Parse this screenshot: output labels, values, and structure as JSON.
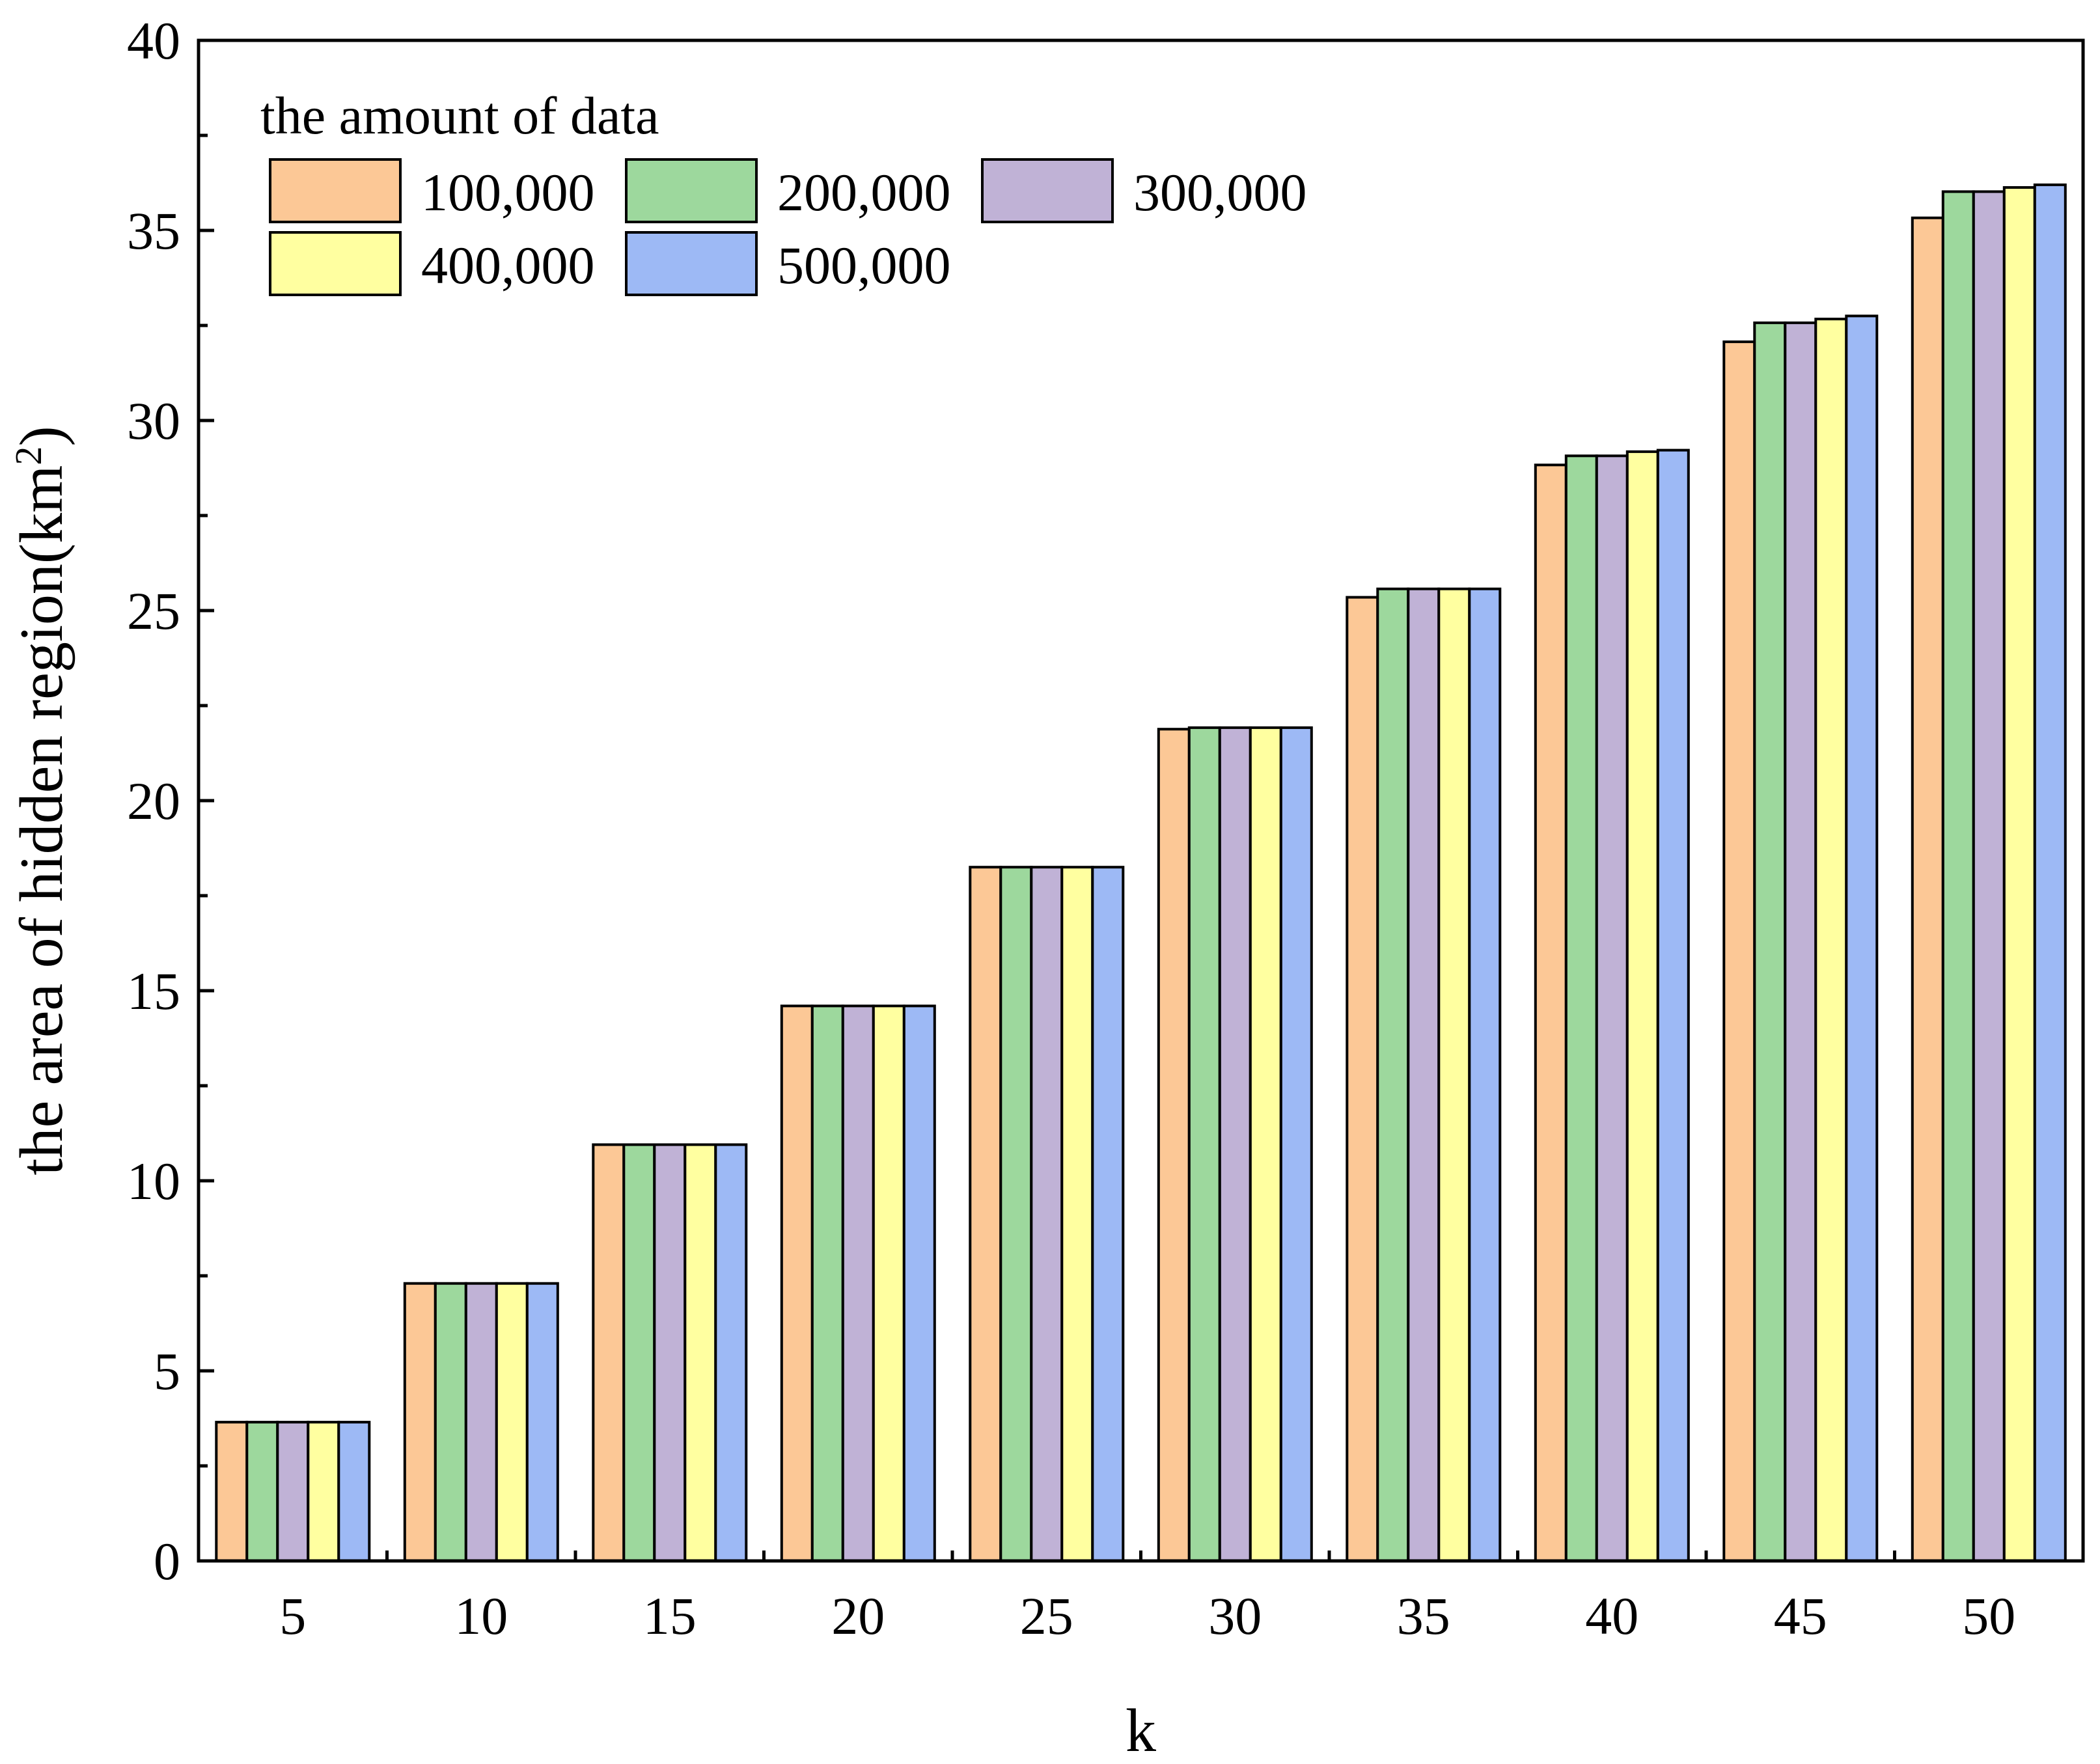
{
  "chart_data": {
    "type": "bar",
    "title": "",
    "xlabel": "k",
    "ylabel": "the area of hidden region(km",
    "ylabel_sup": "2",
    "ylabel_close": ")",
    "ylim": [
      0,
      40
    ],
    "yticks": [
      0,
      5,
      10,
      15,
      20,
      25,
      30,
      35,
      40
    ],
    "categories": [
      "5",
      "10",
      "15",
      "20",
      "25",
      "30",
      "35",
      "40",
      "45",
      "50"
    ],
    "legend_title": "the amount of data",
    "legend_position": "top-left",
    "series": [
      {
        "name": "100,000",
        "color": "#FCC896",
        "values": [
          3.65,
          7.3,
          10.95,
          14.6,
          18.25,
          21.88,
          25.35,
          28.83,
          32.07,
          35.33
        ]
      },
      {
        "name": "200,000",
        "color": "#9DD89D",
        "values": [
          3.65,
          7.3,
          10.95,
          14.6,
          18.25,
          21.92,
          25.57,
          29.07,
          32.57,
          36.02
        ]
      },
      {
        "name": "300,000",
        "color": "#C0B2D6",
        "values": [
          3.65,
          7.3,
          10.95,
          14.6,
          18.25,
          21.92,
          25.57,
          29.07,
          32.57,
          36.02
        ]
      },
      {
        "name": "400,000",
        "color": "#FFFFA0",
        "values": [
          3.65,
          7.3,
          10.95,
          14.6,
          18.25,
          21.92,
          25.57,
          29.18,
          32.67,
          36.13
        ]
      },
      {
        "name": "500,000",
        "color": "#9DB9F5",
        "values": [
          3.65,
          7.3,
          10.95,
          14.6,
          18.25,
          21.92,
          25.57,
          29.22,
          32.75,
          36.2
        ]
      }
    ]
  }
}
